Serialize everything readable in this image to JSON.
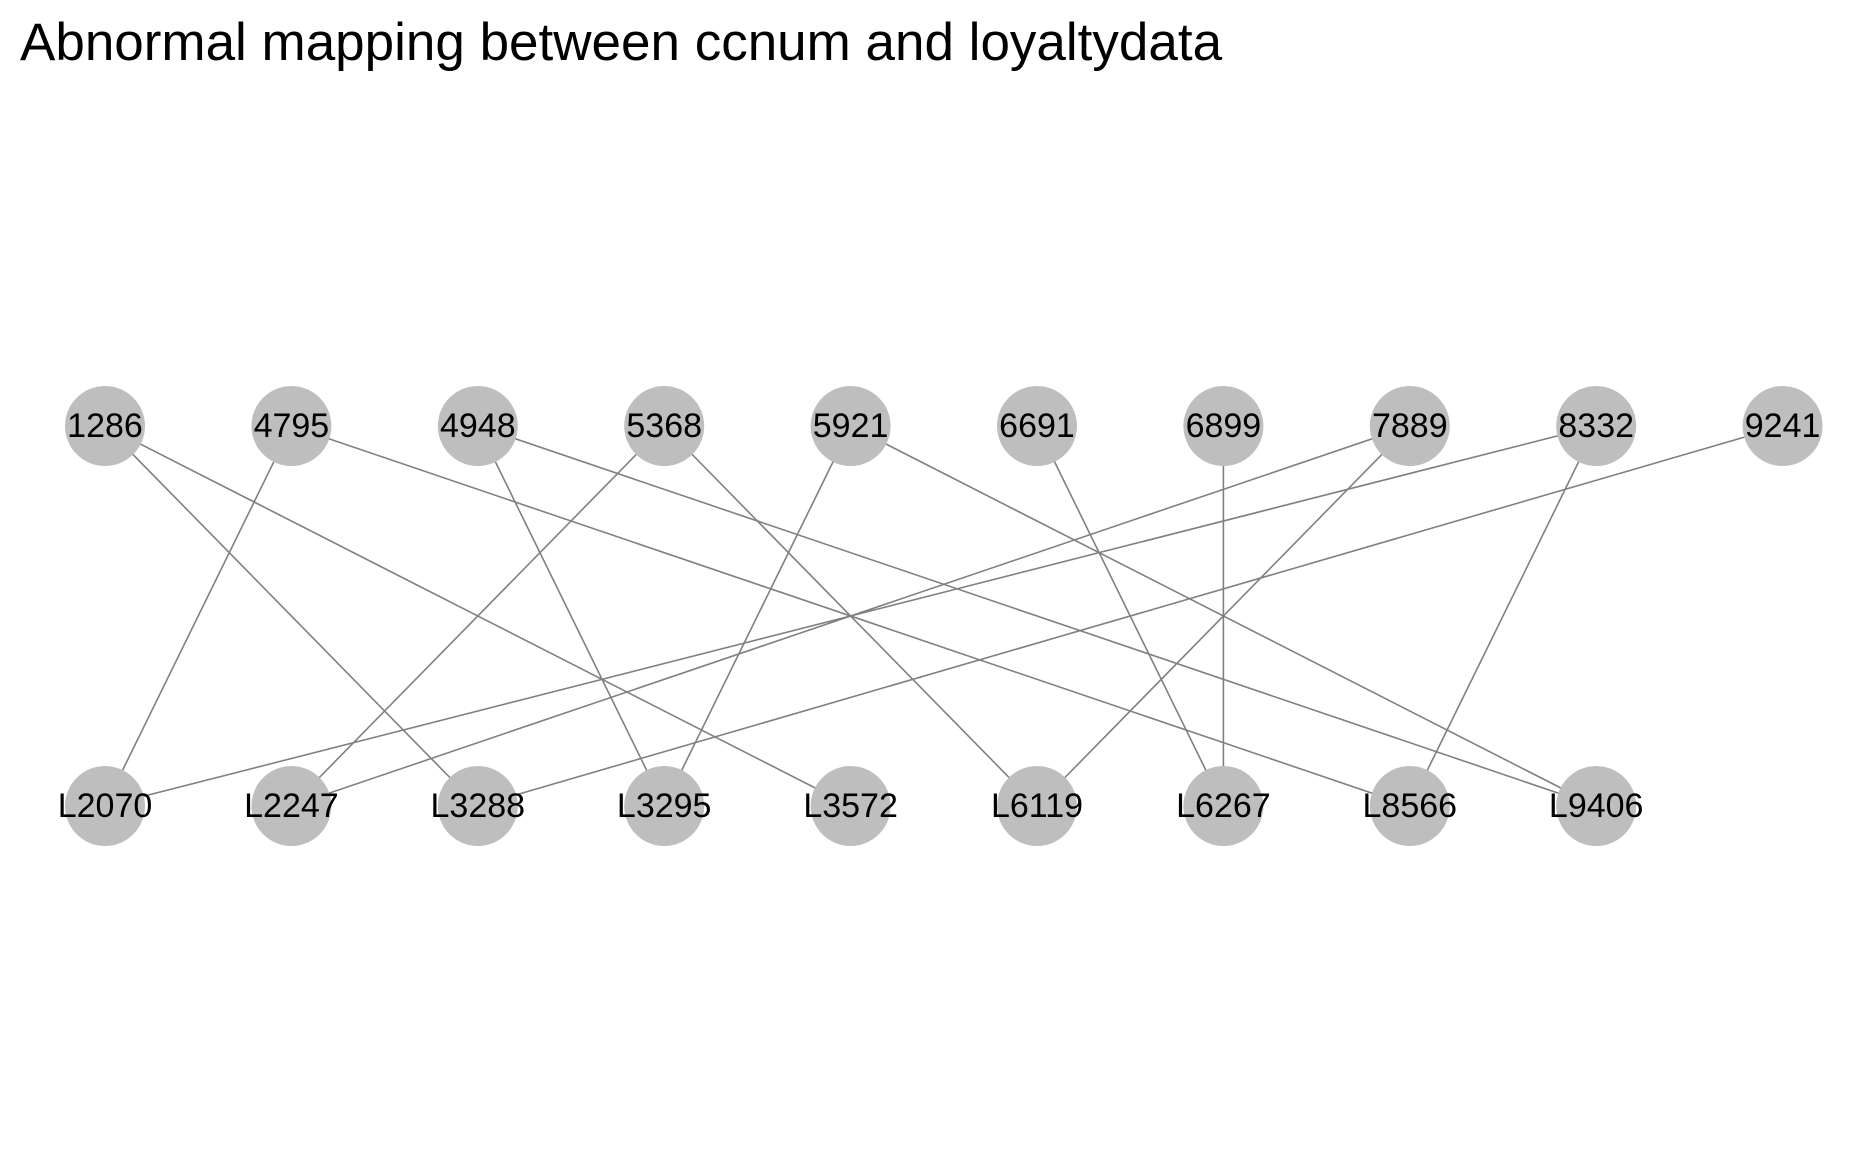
{
  "title": "Abnormal mapping between ccnum and loyaltydata",
  "colors": {
    "node_fill": "#bebebe",
    "edge_stroke": "#808080",
    "label": "#000000",
    "background": "#ffffff"
  },
  "graph": {
    "layout": "bipartite",
    "ccnum_nodes": [
      "1286",
      "4795",
      "4948",
      "5368",
      "5921",
      "6691",
      "6899",
      "7889",
      "8332",
      "9241"
    ],
    "loyalty_nodes": [
      "L2070",
      "L2247",
      "L3288",
      "L3295",
      "L3572",
      "L6119",
      "L6267",
      "L8566",
      "L9406"
    ],
    "edges": [
      {
        "from": "1286",
        "to": "L3288"
      },
      {
        "from": "1286",
        "to": "L3572"
      },
      {
        "from": "4795",
        "to": "L2070"
      },
      {
        "from": "4795",
        "to": "L8566"
      },
      {
        "from": "4948",
        "to": "L3295"
      },
      {
        "from": "4948",
        "to": "L9406"
      },
      {
        "from": "5368",
        "to": "L2247"
      },
      {
        "from": "5368",
        "to": "L6119"
      },
      {
        "from": "5921",
        "to": "L3295"
      },
      {
        "from": "5921",
        "to": "L9406"
      },
      {
        "from": "6691",
        "to": "L6267"
      },
      {
        "from": "6899",
        "to": "L6267"
      },
      {
        "from": "7889",
        "to": "L2247"
      },
      {
        "from": "7889",
        "to": "L6119"
      },
      {
        "from": "8332",
        "to": "L2070"
      },
      {
        "from": "8332",
        "to": "L8566"
      },
      {
        "from": "9241",
        "to": "L3288"
      }
    ]
  }
}
